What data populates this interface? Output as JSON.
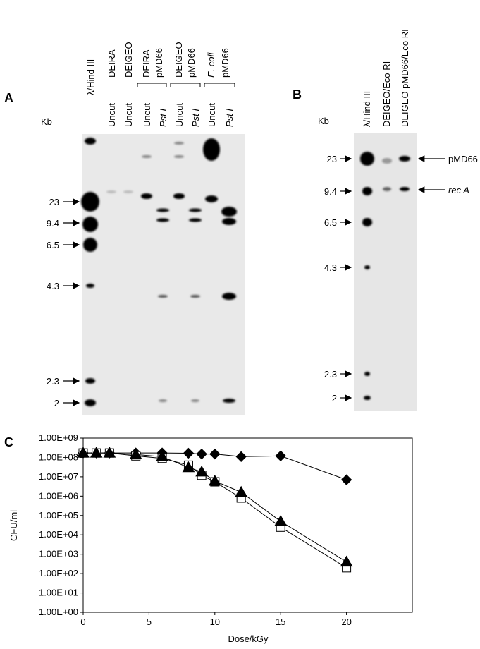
{
  "panel_a": {
    "label": "A",
    "unit": "Kb",
    "lanes": [
      "λ/Hind III",
      "DEIRA",
      "DEIGEO"
    ],
    "groups": [
      [
        "DEIRA",
        "pMD66"
      ],
      [
        "DEIGEO",
        "pMD66"
      ],
      [
        "E. coli",
        "pMD66"
      ]
    ],
    "treatments": [
      "Uncut",
      "Uncut",
      "Uncut",
      "Pst I",
      "Uncut",
      "Pst I",
      "Uncut",
      "Pst I"
    ],
    "size_markers": [
      "23",
      "9.4",
      "6.5",
      "4.3",
      "2.3",
      "2"
    ]
  },
  "panel_b": {
    "label": "B",
    "unit": "Kb",
    "lanes": [
      "λ/Hind III",
      "DEIGEO/Eco RI",
      "DEIGEO pMD66/Eco RI"
    ],
    "size_markers": [
      "23",
      "9.4",
      "6.5",
      "4.3",
      "2.3",
      "2"
    ],
    "annotations": [
      "pMD66",
      "rec A"
    ]
  },
  "chart_data": {
    "type": "line",
    "label": "C",
    "x_label": "Dose/kGy",
    "y_label": "CFU/ml",
    "log_y": true,
    "x": [
      0,
      1,
      2,
      4,
      6,
      8,
      9,
      10,
      12,
      15,
      20
    ],
    "xlim": [
      0,
      25
    ],
    "xticks": [
      0,
      5,
      10,
      15,
      20
    ],
    "ylim": [
      1,
      1000000000
    ],
    "yticks": [
      {
        "value": 1,
        "label": "1.00E+00"
      },
      {
        "value": 10,
        "label": "1.00E+01"
      },
      {
        "value": 100,
        "label": "1.00E+02"
      },
      {
        "value": 1000,
        "label": "1.00E+03"
      },
      {
        "value": 10000,
        "label": "1.00E+04"
      },
      {
        "value": 100000,
        "label": "1.00E+05"
      },
      {
        "value": 1000000,
        "label": "1.00E+06"
      },
      {
        "value": 10000000,
        "label": "1.00E+07"
      },
      {
        "value": 100000000,
        "label": "1.00E+08"
      },
      {
        "value": 1000000000,
        "label": "1.00E+09"
      }
    ],
    "series": [
      {
        "marker": "diamond",
        "color": "#000000",
        "values": [
          170000000,
          170000000,
          170000000,
          170000000,
          170000000,
          165000000,
          150000000,
          150000000,
          110000000,
          120000000,
          7000000
        ]
      },
      {
        "marker": "square",
        "color": "#ffffff",
        "values": [
          170000000,
          170000000,
          170000000,
          120000000,
          90000000,
          40000000,
          12000000,
          5500000,
          800000,
          25000,
          200
        ]
      },
      {
        "marker": "triangle",
        "color": "#000000",
        "values": [
          170000000,
          170000000,
          170000000,
          140000000,
          110000000,
          30000000,
          18000000,
          6000000,
          1600000,
          50000,
          400
        ]
      }
    ]
  }
}
